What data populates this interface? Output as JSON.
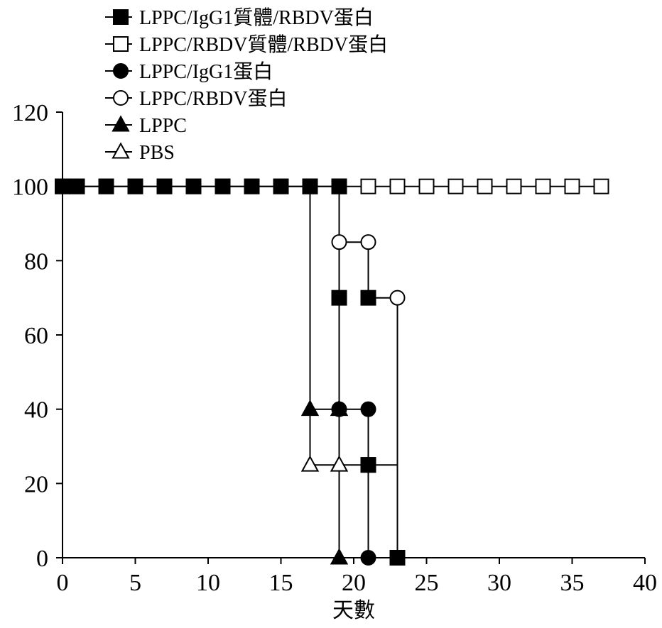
{
  "chart_data": {
    "type": "line",
    "step": true,
    "title": "",
    "xlabel": "天數",
    "ylabel": "",
    "xlim": [
      0,
      40
    ],
    "ylim": [
      0,
      120
    ],
    "xticks": [
      0,
      5,
      10,
      15,
      20,
      25,
      30,
      35,
      40
    ],
    "yticks": [
      0,
      20,
      40,
      60,
      80,
      100,
      120
    ],
    "grid": false,
    "legend_position": "top-left",
    "series": [
      {
        "name": "LPPC/IgG1質體/RBDV蛋白",
        "marker": "square-filled",
        "x": [
          0,
          1,
          3,
          5,
          7,
          9,
          11,
          13,
          15,
          17,
          19,
          21,
          23
        ],
        "y": [
          100,
          100,
          100,
          100,
          100,
          100,
          100,
          100,
          100,
          100,
          100,
          25,
          0
        ],
        "steps": [
          [
            0,
            100
          ],
          [
            19,
            100
          ],
          [
            19,
            25
          ],
          [
            23,
            25
          ],
          [
            23,
            0
          ]
        ]
      },
      {
        "name": "LPPC/RBDV質體/RBDV蛋白",
        "marker": "square-open",
        "x": [
          0,
          1,
          3,
          5,
          7,
          9,
          11,
          13,
          15,
          17,
          19,
          21,
          23,
          25,
          27,
          29,
          31,
          33,
          35,
          37
        ],
        "y": [
          100,
          100,
          100,
          100,
          100,
          100,
          100,
          100,
          100,
          100,
          100,
          100,
          100,
          100,
          100,
          100,
          100,
          100,
          100,
          100
        ],
        "steps": [
          [
            0,
            100
          ],
          [
            37,
            100
          ]
        ]
      },
      {
        "name": "LPPC/IgG1蛋白",
        "marker": "circle-filled",
        "x": [
          19,
          21,
          21
        ],
        "y": [
          40,
          40,
          0
        ],
        "steps": [
          [
            19,
            40
          ],
          [
            21,
            40
          ],
          [
            21,
            0
          ]
        ]
      },
      {
        "name": "LPPC/RBDV蛋白",
        "marker": "circle-open",
        "x": [
          19,
          21,
          23
        ],
        "y": [
          85,
          85,
          70
        ],
        "steps": [
          [
            19,
            100
          ],
          [
            19,
            85
          ],
          [
            21,
            85
          ],
          [
            21,
            70
          ],
          [
            23,
            70
          ],
          [
            23,
            0
          ]
        ]
      },
      {
        "name": "LPPC",
        "marker": "triangle-filled",
        "x": [
          17,
          19,
          19
        ],
        "y": [
          40,
          40,
          0
        ],
        "steps": [
          [
            17,
            100
          ],
          [
            17,
            40
          ],
          [
            19,
            40
          ],
          [
            19,
            0
          ]
        ]
      },
      {
        "name": "PBS",
        "marker": "triangle-open",
        "x": [
          17,
          19
        ],
        "y": [
          25,
          25
        ],
        "steps": [
          [
            17,
            100
          ],
          [
            17,
            25
          ],
          [
            19,
            25
          ],
          [
            19,
            0
          ]
        ]
      }
    ],
    "extra_marks": [
      {
        "marker": "square-filled",
        "x": 19,
        "y": 70
      },
      {
        "marker": "square-filled",
        "x": 21,
        "y": 70
      },
      {
        "marker": "square-filled",
        "x": 17,
        "y": 100
      },
      {
        "marker": "square-filled",
        "x": 19,
        "y": 100
      },
      {
        "marker": "square-filled",
        "x": 21,
        "y": 25
      }
    ]
  }
}
